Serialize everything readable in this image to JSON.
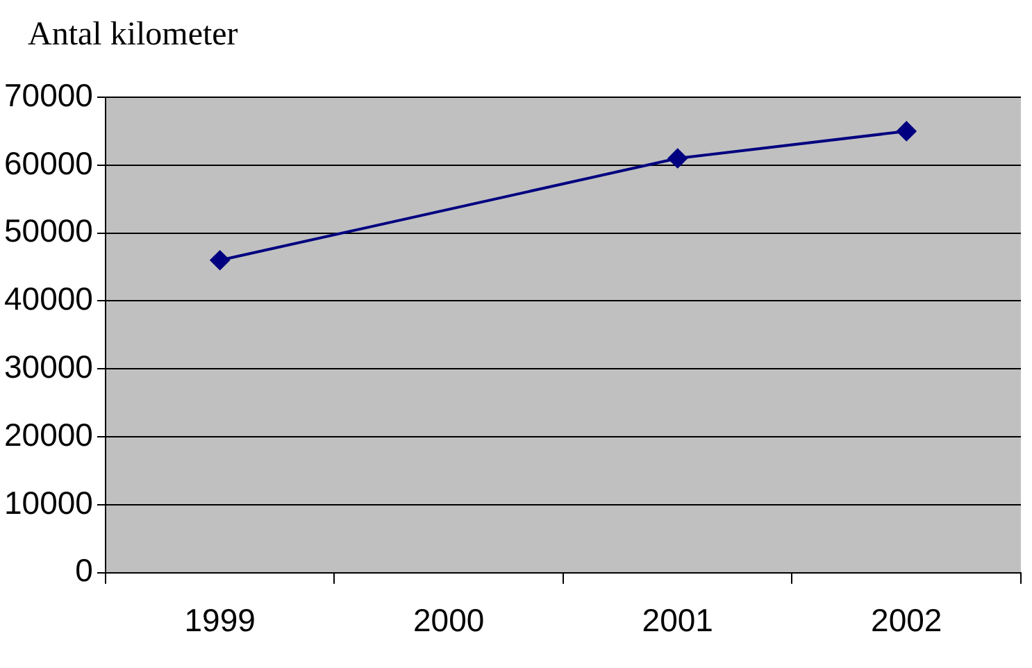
{
  "chart_data": {
    "type": "line",
    "title": "Antal kilometer",
    "categories": [
      "1999",
      "2000",
      "2001",
      "2002"
    ],
    "series": [
      {
        "color": "#000080",
        "values": [
          46000,
          null,
          61000,
          65000
        ]
      }
    ],
    "ylim": [
      0,
      70000
    ],
    "yticks": [
      0,
      10000,
      20000,
      30000,
      40000,
      50000,
      60000,
      70000
    ],
    "grid": "y",
    "legend": false,
    "marker": "diamond",
    "line_style": "solid"
  }
}
